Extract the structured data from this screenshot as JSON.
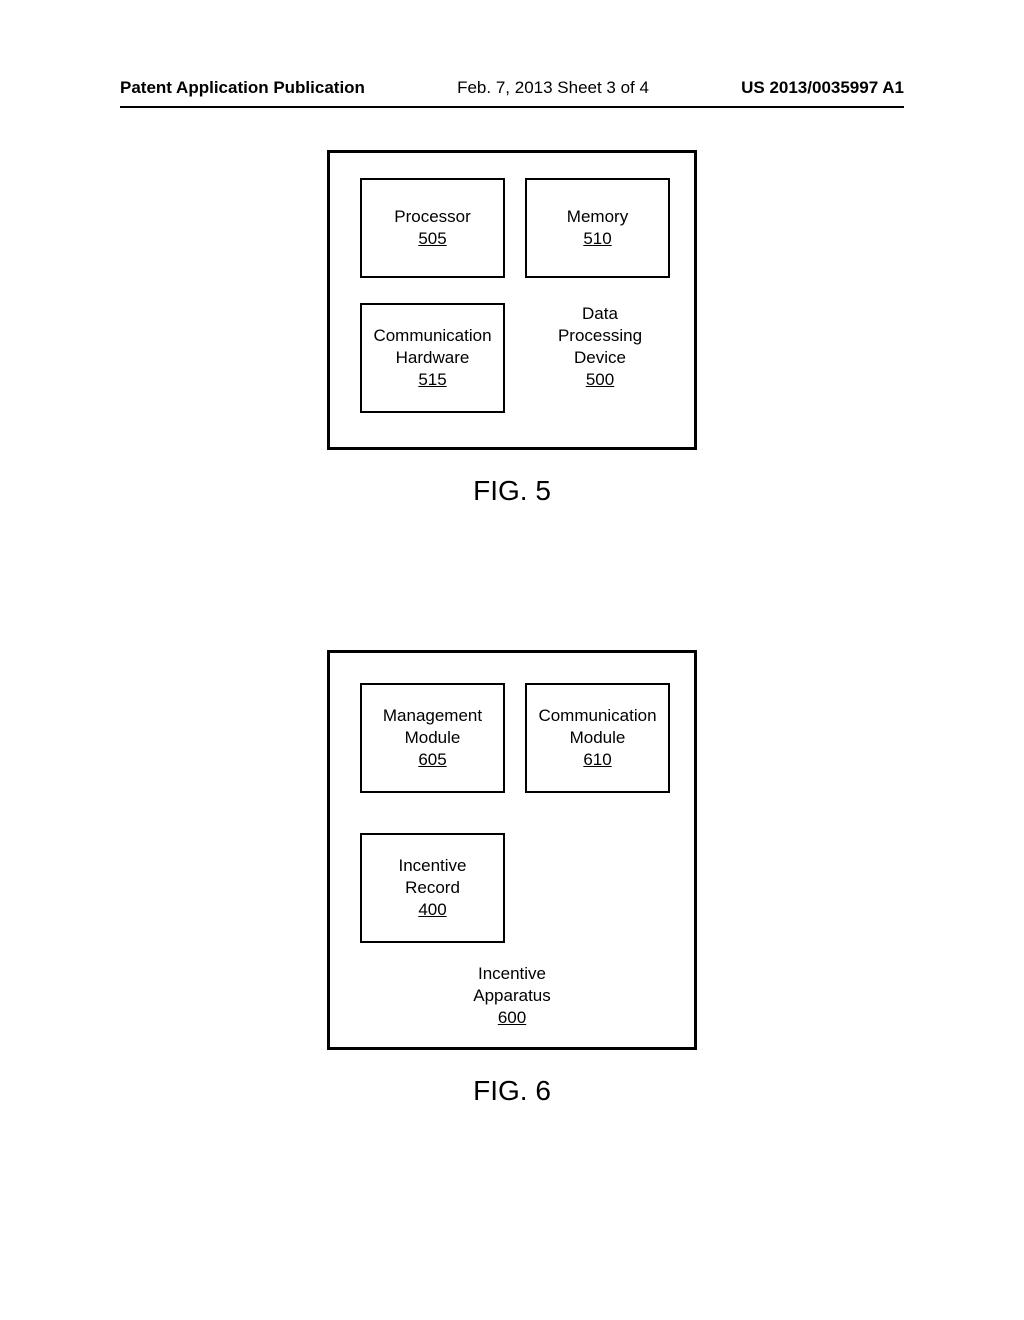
{
  "header": {
    "left": "Patent Application Publication",
    "center": "Feb. 7, 2013  Sheet 3 of 4",
    "right": "US 2013/0035997 A1"
  },
  "fig5": {
    "caption": "FIG. 5",
    "boxes": {
      "processor": {
        "title": "Processor",
        "ref": "505"
      },
      "memory": {
        "title": "Memory",
        "ref": "510"
      },
      "commhw": {
        "title1": "Communication",
        "title2": "Hardware",
        "ref": "515"
      },
      "device": {
        "title1": "Data",
        "title2": "Processing",
        "title3": "Device",
        "ref": "500"
      }
    }
  },
  "fig6": {
    "caption": "FIG. 6",
    "boxes": {
      "mgmt": {
        "title1": "Management",
        "title2": "Module",
        "ref": "605"
      },
      "cmod": {
        "title1": "Communication",
        "title2": "Module",
        "ref": "610"
      },
      "inc": {
        "title1": "Incentive",
        "title2": "Record",
        "ref": "400"
      },
      "app": {
        "title1": "Incentive",
        "title2": "Apparatus",
        "ref": "600"
      }
    }
  }
}
